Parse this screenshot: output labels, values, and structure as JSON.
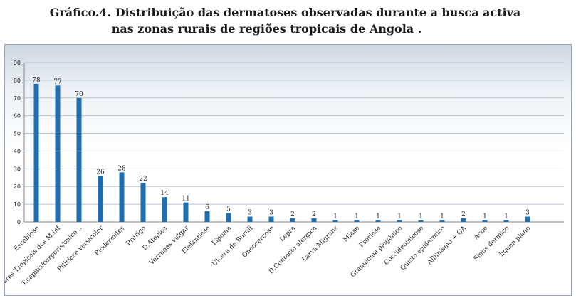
{
  "chart_data": {
    "type": "bar",
    "title": [
      "Gráfico.4. Distribuição das dermatoses observadas durante a busca activa",
      "nas zonas rurais de regiões tropicais de Angola ."
    ],
    "categories": [
      "Escabiose",
      "Ulceras Tropicais dos M.inf",
      "T.capitis/corporis/onico...",
      "Pitiriase versicolor",
      "Piodermites",
      "Prurigo",
      "D.Atopica",
      "Verrugas vulgar",
      "Elefantiase",
      "Lipoma",
      "Úlcera de Buruli",
      "Oncocercose",
      "Lepra",
      "D.Contacto alergica",
      "Larva Migrans",
      "Miase",
      "Psoriase",
      "Granuloma piogénico",
      "Coccideomicose",
      "Quisto epidermico",
      "Albinismo + QA",
      "Acne",
      "Sinus dermico",
      "liquen plano"
    ],
    "values": [
      78,
      77,
      70,
      26,
      28,
      22,
      14,
      11,
      6,
      5,
      3,
      3,
      2,
      2,
      1,
      1,
      1,
      1,
      1,
      1,
      2,
      1,
      1,
      3
    ],
    "yticks": [
      "0",
      "10",
      "20",
      "30",
      "40",
      "50",
      "60",
      "70",
      "80",
      "90"
    ],
    "ylim": [
      0,
      90
    ],
    "grid": true,
    "bar_color": "#1f6fb2",
    "data_labels": true
  }
}
